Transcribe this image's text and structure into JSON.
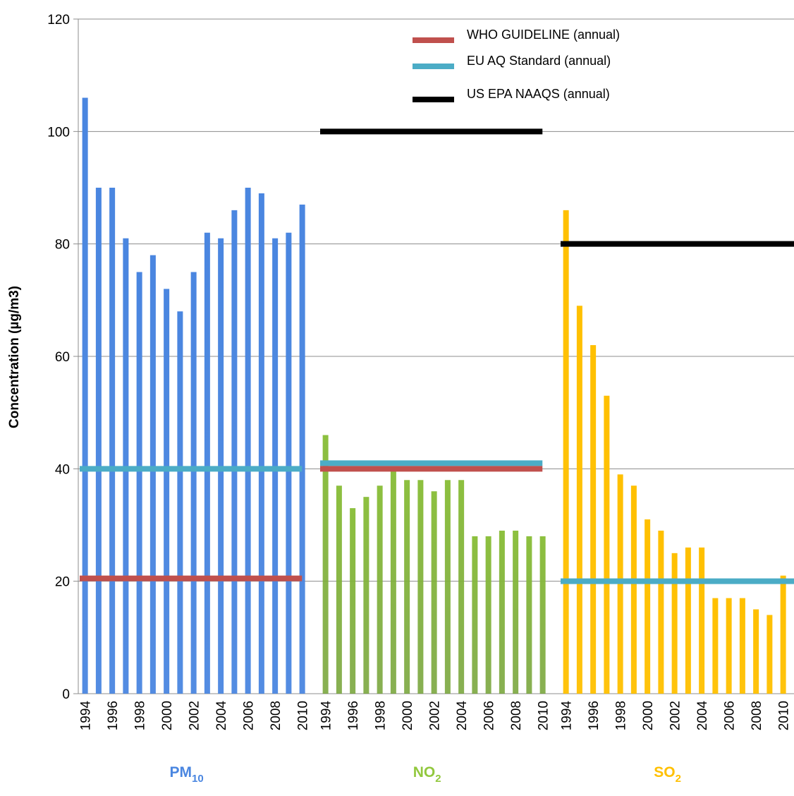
{
  "chart_data": {
    "type": "bar",
    "title": "",
    "ylabel": "Concentration (µg/m3)",
    "ylim": [
      0,
      120
    ],
    "yticks": [
      0,
      20,
      40,
      60,
      80,
      100,
      120
    ],
    "grid": true,
    "legend": {
      "placement": "top-right",
      "entries": [
        {
          "name": "WHO GUIDELINE (annual)",
          "color": "#c0504d"
        },
        {
          "name": "EU AQ Standard (annual)",
          "color": "#4bacc6"
        },
        {
          "name": "US EPA NAAQS (annual)",
          "color": "#000000"
        }
      ]
    },
    "years": [
      1994,
      1995,
      1996,
      1997,
      1998,
      1999,
      2000,
      2001,
      2002,
      2003,
      2004,
      2005,
      2006,
      2007,
      2008,
      2009,
      2010
    ],
    "year_tick_labels": [
      "1994",
      "1996",
      "1998",
      "2000",
      "2002",
      "2004",
      "2006",
      "2008",
      "2010"
    ],
    "groups": [
      {
        "name": "PM",
        "subscript": "10",
        "color": "#4a86e0",
        "label_color": "#4a86e0",
        "values": [
          106,
          90,
          90,
          81,
          75,
          78,
          72,
          68,
          75,
          82,
          81,
          86,
          90,
          89,
          81,
          82,
          87
        ],
        "reference_lines": [
          {
            "standard": "EU AQ Standard (annual)",
            "value": 40,
            "color": "#4bacc6"
          },
          {
            "standard": "WHO GUIDELINE (annual)",
            "value": 20.5,
            "color": "#c0504d"
          }
        ]
      },
      {
        "name": "NO",
        "subscript": "2",
        "color": "#8dc03f",
        "label_color": "#92c83e",
        "values": [
          46,
          37,
          33,
          35,
          37,
          40,
          38,
          38,
          36,
          38,
          38,
          28,
          28,
          29,
          29,
          28,
          28
        ],
        "reference_lines": [
          {
            "standard": "US EPA NAAQS (annual)",
            "value": 100,
            "color": "#000000"
          },
          {
            "standard": "EU AQ Standard (annual)",
            "value": 41,
            "color": "#4bacc6"
          },
          {
            "standard": "WHO GUIDELINE (annual)",
            "value": 40,
            "color": "#c0504d"
          }
        ]
      },
      {
        "name": "SO",
        "subscript": "2",
        "color": "#ffc000",
        "label_color": "#ffc000",
        "values": [
          86,
          69,
          62,
          53,
          39,
          37,
          31,
          29,
          25,
          26,
          26,
          17,
          17,
          17,
          15,
          14,
          21
        ],
        "reference_lines": [
          {
            "standard": "US EPA NAAQS (annual)",
            "value": 80,
            "color": "#000000"
          },
          {
            "standard": "EU AQ Standard (annual)",
            "value": 20,
            "color": "#4bacc6"
          }
        ]
      }
    ]
  }
}
